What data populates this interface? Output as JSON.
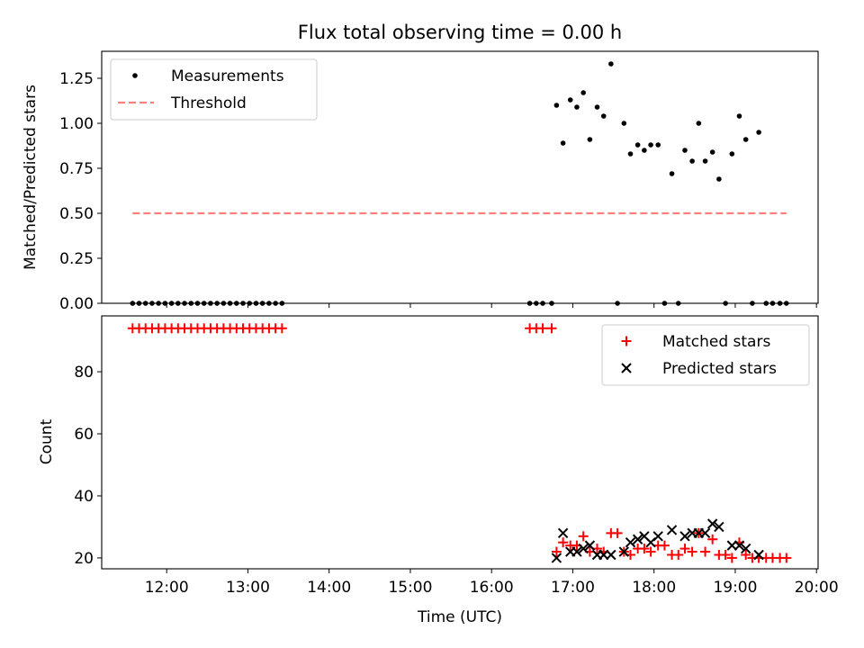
{
  "title": "Flux total observing time = 0.00 h",
  "chart_data": [
    {
      "type": "scatter",
      "ylabel": "Matched/Predicted stars",
      "xlabel": "",
      "ylim": [
        0,
        1.4
      ],
      "xlim": [
        11.2,
        20.02
      ],
      "grid": false,
      "legend_position": "upper-left",
      "yticks": [
        0.0,
        0.25,
        0.5,
        0.75,
        1.0,
        1.25
      ],
      "ytick_labels": [
        "0.00",
        "0.25",
        "0.50",
        "0.75",
        "1.00",
        "1.25"
      ],
      "series": [
        {
          "name": "Measurements",
          "kind": "points",
          "color": "#000000",
          "points": [
            [
              11.58,
              0
            ],
            [
              11.66,
              0
            ],
            [
              11.74,
              0
            ],
            [
              11.82,
              0
            ],
            [
              11.9,
              0
            ],
            [
              11.98,
              0
            ],
            [
              12.06,
              0
            ],
            [
              12.14,
              0
            ],
            [
              12.22,
              0
            ],
            [
              12.3,
              0
            ],
            [
              12.38,
              0
            ],
            [
              12.46,
              0
            ],
            [
              12.54,
              0
            ],
            [
              12.62,
              0
            ],
            [
              12.7,
              0
            ],
            [
              12.78,
              0
            ],
            [
              12.86,
              0
            ],
            [
              12.94,
              0
            ],
            [
              13.02,
              0
            ],
            [
              13.1,
              0
            ],
            [
              13.18,
              0
            ],
            [
              13.26,
              0
            ],
            [
              13.34,
              0
            ],
            [
              13.42,
              0
            ],
            [
              16.47,
              0
            ],
            [
              16.55,
              0
            ],
            [
              16.63,
              0
            ],
            [
              16.74,
              0
            ],
            [
              16.8,
              1.1
            ],
            [
              16.88,
              0.89
            ],
            [
              16.97,
              1.13
            ],
            [
              17.05,
              1.09
            ],
            [
              17.13,
              1.17
            ],
            [
              17.21,
              0.91
            ],
            [
              17.3,
              1.09
            ],
            [
              17.38,
              1.04
            ],
            [
              17.47,
              1.33
            ],
            [
              17.55,
              0
            ],
            [
              17.63,
              1.0
            ],
            [
              17.71,
              0.83
            ],
            [
              17.8,
              0.88
            ],
            [
              17.88,
              0.85
            ],
            [
              17.96,
              0.88
            ],
            [
              18.05,
              0.88
            ],
            [
              18.13,
              0
            ],
            [
              18.22,
              0.72
            ],
            [
              18.3,
              0
            ],
            [
              18.38,
              0.85
            ],
            [
              18.47,
              0.79
            ],
            [
              18.55,
              1.0
            ],
            [
              18.63,
              0.79
            ],
            [
              18.72,
              0.84
            ],
            [
              18.8,
              0.69
            ],
            [
              18.88,
              0
            ],
            [
              18.96,
              0.83
            ],
            [
              19.05,
              1.04
            ],
            [
              19.13,
              0.91
            ],
            [
              19.21,
              0
            ],
            [
              19.29,
              0.95
            ],
            [
              19.38,
              0
            ],
            [
              19.46,
              0
            ],
            [
              19.55,
              0
            ],
            [
              19.63,
              0
            ]
          ]
        },
        {
          "name": "Threshold",
          "kind": "dashed-line",
          "color": "#ff7f7f",
          "x": [
            11.58,
            19.63
          ],
          "y": [
            0.5,
            0.5
          ]
        }
      ]
    },
    {
      "type": "scatter",
      "ylabel": "Count",
      "xlabel": "Time (UTC)",
      "ylim": [
        16.5,
        98
      ],
      "xlim": [
        11.2,
        20.02
      ],
      "grid": false,
      "legend_position": "upper-right",
      "yticks": [
        20,
        40,
        60,
        80
      ],
      "ytick_labels": [
        "20",
        "40",
        "60",
        "80"
      ],
      "xticks": [
        12,
        13,
        14,
        15,
        16,
        17,
        18,
        19,
        20
      ],
      "xtick_labels": [
        "12:00",
        "13:00",
        "14:00",
        "15:00",
        "16:00",
        "17:00",
        "18:00",
        "19:00",
        "20:00"
      ],
      "series": [
        {
          "name": "Matched stars",
          "kind": "plus",
          "color": "#ff0000",
          "points": [
            [
              11.58,
              94
            ],
            [
              11.66,
              94
            ],
            [
              11.74,
              94
            ],
            [
              11.82,
              94
            ],
            [
              11.9,
              94
            ],
            [
              11.98,
              94
            ],
            [
              12.06,
              94
            ],
            [
              12.14,
              94
            ],
            [
              12.22,
              94
            ],
            [
              12.3,
              94
            ],
            [
              12.38,
              94
            ],
            [
              12.46,
              94
            ],
            [
              12.54,
              94
            ],
            [
              12.62,
              94
            ],
            [
              12.7,
              94
            ],
            [
              12.78,
              94
            ],
            [
              12.86,
              94
            ],
            [
              12.94,
              94
            ],
            [
              13.02,
              94
            ],
            [
              13.1,
              94
            ],
            [
              13.18,
              94
            ],
            [
              13.26,
              94
            ],
            [
              13.34,
              94
            ],
            [
              13.42,
              94
            ],
            [
              16.47,
              94
            ],
            [
              16.55,
              94
            ],
            [
              16.63,
              94
            ],
            [
              16.74,
              94
            ],
            [
              16.8,
              22
            ],
            [
              16.88,
              25
            ],
            [
              16.97,
              24
            ],
            [
              17.05,
              24
            ],
            [
              17.13,
              27
            ],
            [
              17.21,
              22
            ],
            [
              17.3,
              23
            ],
            [
              17.38,
              22
            ],
            [
              17.47,
              28
            ],
            [
              17.55,
              28
            ],
            [
              17.63,
              22
            ],
            [
              17.71,
              21
            ],
            [
              17.8,
              23
            ],
            [
              17.88,
              23
            ],
            [
              17.96,
              22
            ],
            [
              18.05,
              24
            ],
            [
              18.13,
              24
            ],
            [
              18.22,
              21
            ],
            [
              18.3,
              21
            ],
            [
              18.38,
              23
            ],
            [
              18.47,
              22
            ],
            [
              18.55,
              28
            ],
            [
              18.63,
              22
            ],
            [
              18.72,
              26
            ],
            [
              18.8,
              21
            ],
            [
              18.88,
              21
            ],
            [
              18.96,
              20
            ],
            [
              19.05,
              25
            ],
            [
              19.13,
              21
            ],
            [
              19.21,
              20
            ],
            [
              19.29,
              20
            ],
            [
              19.38,
              20
            ],
            [
              19.46,
              20
            ],
            [
              19.55,
              20
            ],
            [
              19.63,
              20
            ]
          ]
        },
        {
          "name": "Predicted stars",
          "kind": "x",
          "color": "#000000",
          "points": [
            [
              16.8,
              20
            ],
            [
              16.88,
              28
            ],
            [
              16.97,
              22
            ],
            [
              17.05,
              22
            ],
            [
              17.13,
              23
            ],
            [
              17.21,
              24
            ],
            [
              17.3,
              21
            ],
            [
              17.38,
              21
            ],
            [
              17.47,
              21
            ],
            [
              17.63,
              22
            ],
            [
              17.71,
              25
            ],
            [
              17.8,
              26
            ],
            [
              17.88,
              27
            ],
            [
              17.96,
              25
            ],
            [
              18.05,
              27
            ],
            [
              18.22,
              29
            ],
            [
              18.38,
              27
            ],
            [
              18.47,
              28
            ],
            [
              18.55,
              28
            ],
            [
              18.63,
              28
            ],
            [
              18.72,
              31
            ],
            [
              18.8,
              30
            ],
            [
              18.96,
              24
            ],
            [
              19.05,
              24
            ],
            [
              19.13,
              23
            ],
            [
              19.29,
              21
            ]
          ]
        }
      ]
    }
  ]
}
